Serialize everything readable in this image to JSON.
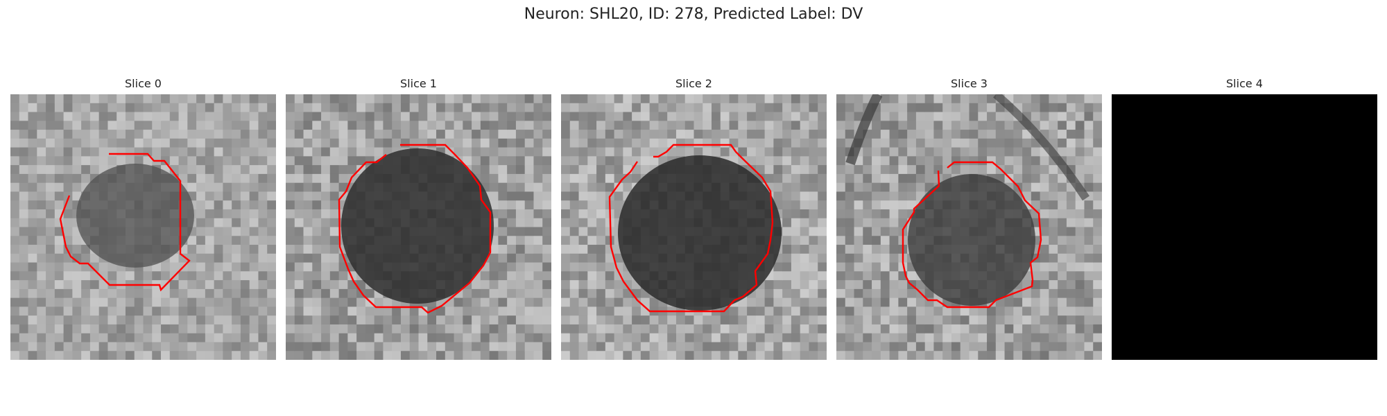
{
  "figure": {
    "title": "Neuron: SHL20, ID: 278, Predicted Label: DV",
    "contour_color": "#ff0000",
    "background_color": "#ffffff"
  },
  "panels": [
    {
      "title": "Slice 0",
      "state": "image with contour"
    },
    {
      "title": "Slice 1",
      "state": "image with contour"
    },
    {
      "title": "Slice 2",
      "state": "image with contour"
    },
    {
      "title": "Slice 3",
      "state": "image with contour"
    },
    {
      "title": "Slice 4",
      "state": "black"
    }
  ]
}
